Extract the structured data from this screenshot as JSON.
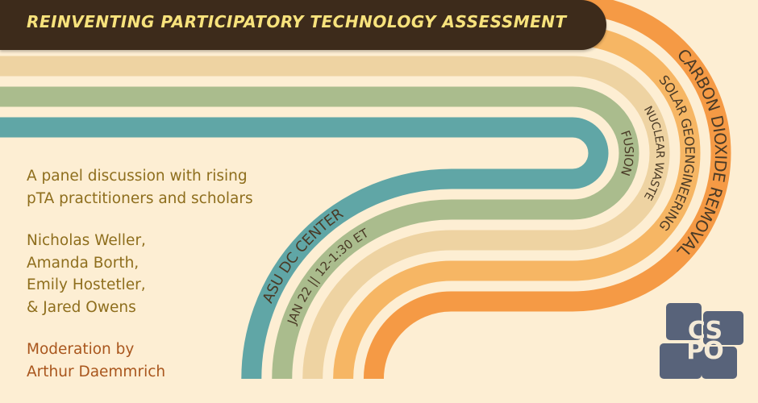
{
  "header": {
    "title": "REINVENTING PARTICIPATORY TECHNOLOGY ASSESSMENT"
  },
  "arcs": {
    "carbon": "CARBON DIOXIDE REMOVAL",
    "solar": "SOLAR GEOENGINEERING",
    "nuclear": "NUCLEAR WASTE",
    "fusion": "FUSION",
    "venue": "ASU DC CENTER",
    "datetime": "JAN 22 || 12-1:30 ET"
  },
  "blurb": {
    "line1": "A panel discussion with rising",
    "line2": "pTA practitioners and scholars",
    "panelists": [
      "Nicholas Weller,",
      "Amanda Borth,",
      "Emily Hostetler,",
      "& Jared Owens"
    ],
    "moderation_label": "Moderation by",
    "moderator": "Arthur Daemmrich"
  },
  "logo": {
    "text_top": "CS",
    "text_bottom": "PO"
  },
  "colors": {
    "background": "#fdeed3",
    "orange": "#f59a45",
    "light_orange": "#f6b664",
    "tan": "#eed3a2",
    "green": "#aabc8d",
    "teal": "#60a6a6",
    "header": "#3d2b1b"
  }
}
